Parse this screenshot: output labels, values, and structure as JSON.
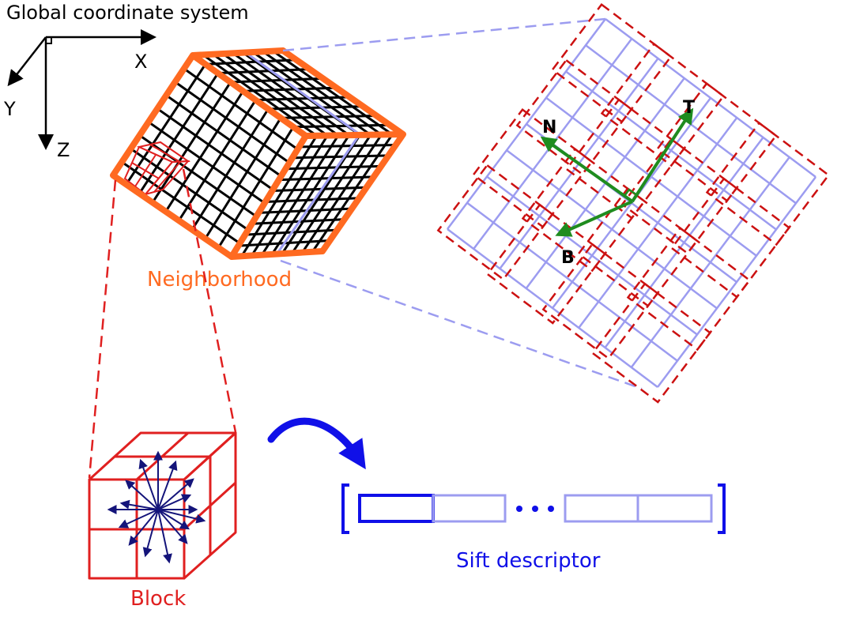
{
  "labels": {
    "global_title": "Global coordinate system",
    "axis_x": "X",
    "axis_y": "Y",
    "axis_z": "Z",
    "neighborhood": "Neighborhood",
    "block": "Block",
    "sift": "Sift descriptor",
    "axis_t": "T",
    "axis_n": "N",
    "axis_b": "B"
  },
  "colors": {
    "orange": "#ff6a21",
    "red": "#e02020",
    "dark_red": "#cc1111",
    "lavender": "#9c9cf0",
    "green": "#1f8c1f",
    "blue": "#1010e8",
    "navy": "#14147a",
    "black": "#000000"
  }
}
